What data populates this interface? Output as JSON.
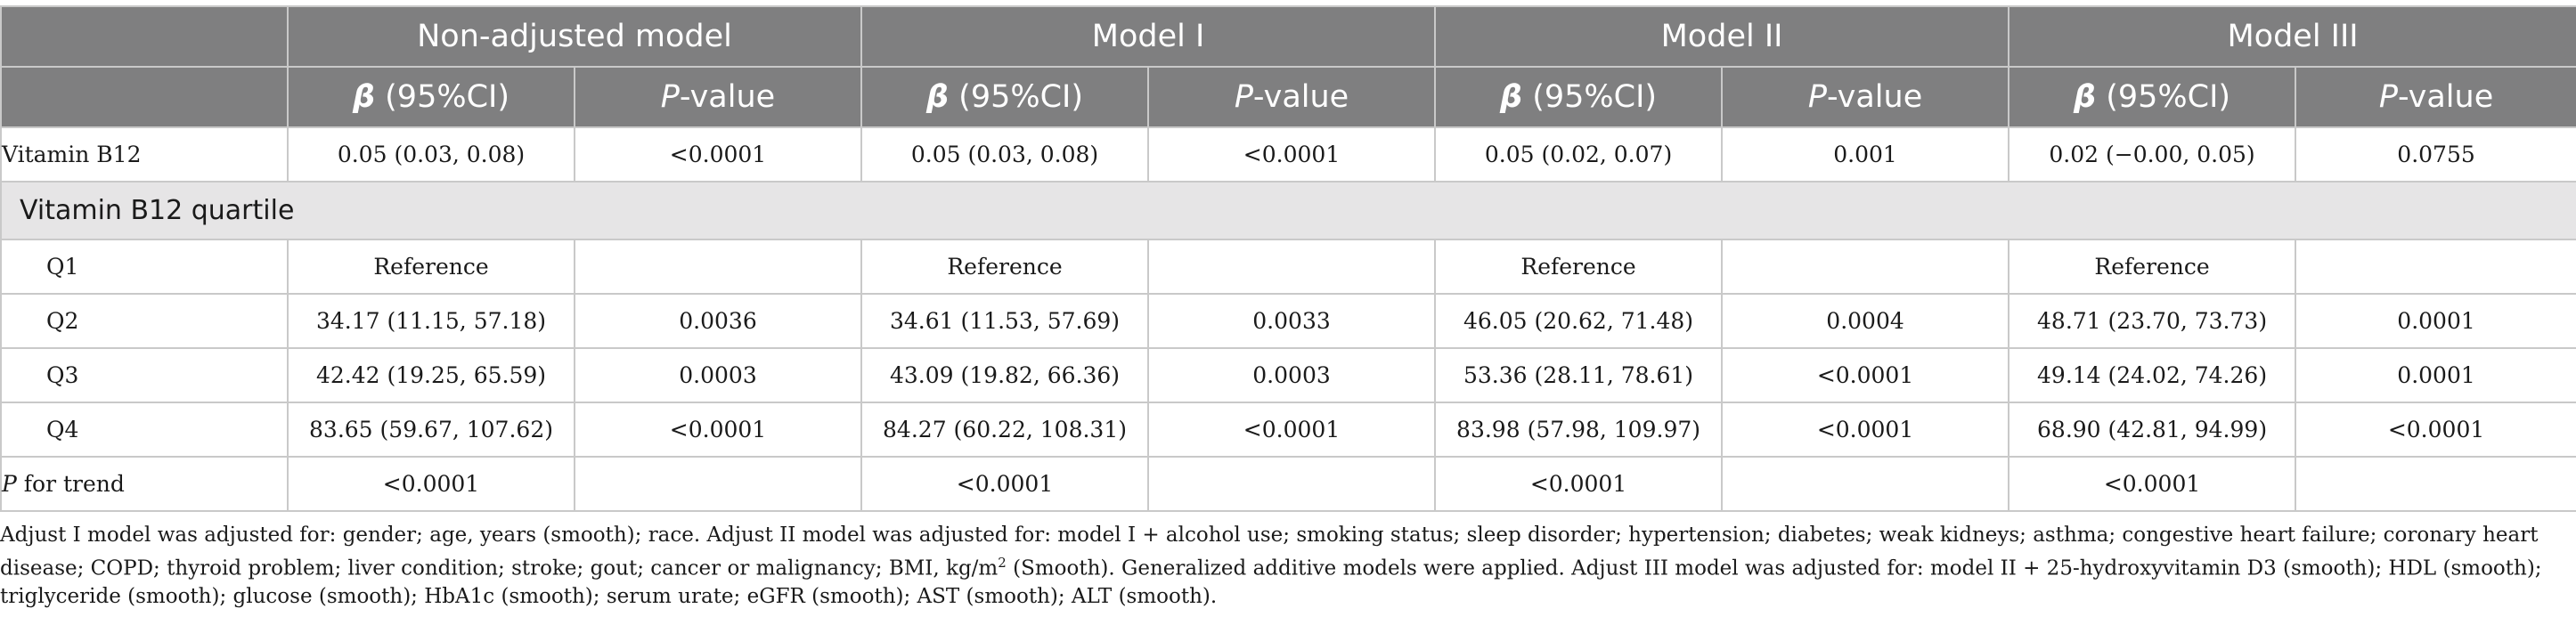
{
  "models": [
    "Non-adjusted model",
    "Model I",
    "Model II",
    "Model III"
  ],
  "col_beta_sym": "β",
  "col_beta_rest": " (95%CI)",
  "col_p_sym": "P",
  "col_p_rest": "-value",
  "rows": {
    "vitb12": {
      "label": "Vitamin B12",
      "cells": [
        "0.05 (0.03, 0.08)",
        "<0.0001",
        "0.05 (0.03, 0.08)",
        "<0.0001",
        "0.05 (0.02, 0.07)",
        "0.001",
        "0.02 (−0.00, 0.05)",
        "0.0755"
      ]
    },
    "section_label": "Vitamin B12 quartile",
    "q1": {
      "label": "Q1",
      "cells": [
        "Reference",
        "",
        "Reference",
        "",
        "Reference",
        "",
        "Reference",
        ""
      ]
    },
    "q2": {
      "label": "Q2",
      "cells": [
        "34.17 (11.15, 57.18)",
        "0.0036",
        "34.61 (11.53, 57.69)",
        "0.0033",
        "46.05 (20.62, 71.48)",
        "0.0004",
        "48.71 (23.70, 73.73)",
        "0.0001"
      ]
    },
    "q3": {
      "label": "Q3",
      "cells": [
        "42.42 (19.25, 65.59)",
        "0.0003",
        "43.09 (19.82, 66.36)",
        "0.0003",
        "53.36 (28.11, 78.61)",
        "<0.0001",
        "49.14 (24.02, 74.26)",
        "0.0001"
      ]
    },
    "q4": {
      "label": "Q4",
      "cells": [
        "83.65 (59.67, 107.62)",
        "<0.0001",
        "84.27 (60.22, 108.31)",
        "<0.0001",
        "83.98 (57.98, 109.97)",
        "<0.0001",
        "68.90 (42.81, 94.99)",
        "<0.0001"
      ]
    },
    "trend": {
      "label_sym": "P",
      "label_rest": " for trend",
      "cells": [
        "<0.0001",
        "",
        "<0.0001",
        "",
        "<0.0001",
        "",
        "<0.0001",
        ""
      ]
    }
  },
  "footnote": {
    "part1": "Adjust I model was adjusted for: gender; age, years (smooth); race. Adjust II model was adjusted for: model I + alcohol use; smoking status; sleep disorder; hypertension; diabetes; weak kidneys; asthma; congestive heart failure; coronary heart disease; COPD; thyroid problem; liver condition; stroke; gout; cancer or malignancy; BMI, kg/m",
    "sup": "2",
    "part2": " (Smooth). Generalized additive models were applied. Adjust III model was adjusted for: model II + 25-hydroxyvitamin D3 (smooth); HDL (smooth); triglyceride (smooth); glucose (smooth); HbA1c (smooth); serum urate; eGFR (smooth); AST (smooth); ALT (smooth)."
  }
}
